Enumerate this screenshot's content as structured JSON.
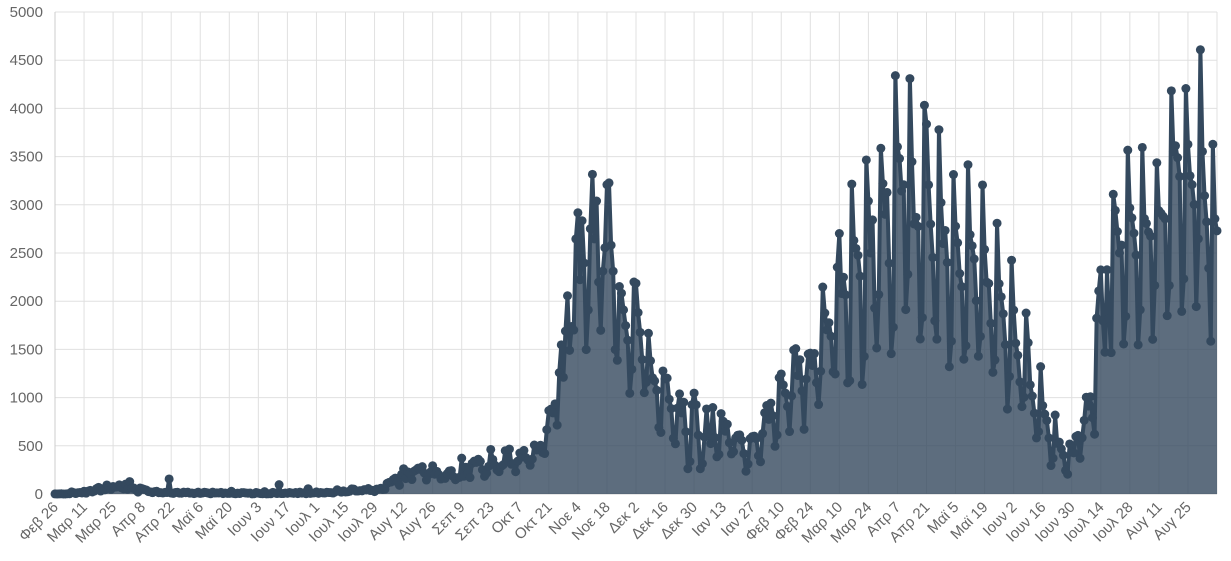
{
  "chart_data": {
    "type": "area",
    "categories": [
      "Φεβ 26",
      null,
      null,
      null,
      null,
      null,
      null,
      null,
      null,
      null,
      null,
      null,
      null,
      null,
      "Μαρ 11",
      null,
      null,
      null,
      null,
      null,
      null,
      null,
      null,
      null,
      null,
      null,
      null,
      null,
      "Μαρ 25",
      null,
      null,
      null,
      null,
      null,
      null,
      null,
      null,
      null,
      null,
      null,
      null,
      null,
      "Απρ 8",
      null,
      null,
      null,
      null,
      null,
      null,
      null,
      null,
      null,
      null,
      null,
      null,
      null,
      "Απρ 22",
      null,
      null,
      null,
      null,
      null,
      null,
      null,
      null,
      null,
      null,
      null,
      null,
      null,
      "Μαϊ 6",
      null,
      null,
      null,
      null,
      null,
      null,
      null,
      null,
      null,
      null,
      null,
      null,
      null,
      "Μαϊ 20",
      null,
      null,
      null,
      null,
      null,
      null,
      null,
      null,
      null,
      null,
      null,
      null,
      null,
      "Ιουν 3",
      null,
      null,
      null,
      null,
      null,
      null,
      null,
      null,
      null,
      null,
      null,
      null,
      null,
      "Ιουν 17",
      null,
      null,
      null,
      null,
      null,
      null,
      null,
      null,
      null,
      null,
      null,
      null,
      null,
      "Ιουλ 1",
      null,
      null,
      null,
      null,
      null,
      null,
      null,
      null,
      null,
      null,
      null,
      null,
      null,
      "Ιουλ 15",
      null,
      null,
      null,
      null,
      null,
      null,
      null,
      null,
      null,
      null,
      null,
      null,
      null,
      "Ιουλ 29",
      null,
      null,
      null,
      null,
      null,
      null,
      null,
      null,
      null,
      null,
      null,
      null,
      null,
      "Αυγ 12",
      null,
      null,
      null,
      null,
      null,
      null,
      null,
      null,
      null,
      null,
      null,
      null,
      null,
      "Αυγ 26",
      null,
      null,
      null,
      null,
      null,
      null,
      null,
      null,
      null,
      null,
      null,
      null,
      null,
      "Σεπ 9",
      null,
      null,
      null,
      null,
      null,
      null,
      null,
      null,
      null,
      null,
      null,
      null,
      null,
      "Σεπ 23",
      null,
      null,
      null,
      null,
      null,
      null,
      null,
      null,
      null,
      null,
      null,
      null,
      null,
      "Οκτ 7",
      null,
      null,
      null,
      null,
      null,
      null,
      null,
      null,
      null,
      null,
      null,
      null,
      null,
      "Οκτ 21",
      null,
      null,
      null,
      null,
      null,
      null,
      null,
      null,
      null,
      null,
      null,
      null,
      null,
      "Νοε 4",
      null,
      null,
      null,
      null,
      null,
      null,
      null,
      null,
      null,
      null,
      null,
      null,
      null,
      "Νοε 18",
      null,
      null,
      null,
      null,
      null,
      null,
      null,
      null,
      null,
      null,
      null,
      null,
      null,
      "Δεκ 2",
      null,
      null,
      null,
      null,
      null,
      null,
      null,
      null,
      null,
      null,
      null,
      null,
      null,
      "Δεκ 16",
      null,
      null,
      null,
      null,
      null,
      null,
      null,
      null,
      null,
      null,
      null,
      null,
      null,
      "Δεκ 30",
      null,
      null,
      null,
      null,
      null,
      null,
      null,
      null,
      null,
      null,
      null,
      null,
      null,
      "Ιαν 13",
      null,
      null,
      null,
      null,
      null,
      null,
      null,
      null,
      null,
      null,
      null,
      null,
      null,
      "Ιαν 27",
      null,
      null,
      null,
      null,
      null,
      null,
      null,
      null,
      null,
      null,
      null,
      null,
      null,
      "Φεβ 10",
      null,
      null,
      null,
      null,
      null,
      null,
      null,
      null,
      null,
      null,
      null,
      null,
      null,
      "Φεβ 24",
      null,
      null,
      null,
      null,
      null,
      null,
      null,
      null,
      null,
      null,
      null,
      null,
      null,
      "Μαρ 10",
      null,
      null,
      null,
      null,
      null,
      null,
      null,
      null,
      null,
      null,
      null,
      null,
      null,
      "Μαρ 24",
      null,
      null,
      null,
      null,
      null,
      null,
      null,
      null,
      null,
      null,
      null,
      null,
      null,
      "Απρ 7",
      null,
      null,
      null,
      null,
      null,
      null,
      null,
      null,
      null,
      null,
      null,
      null,
      null,
      "Απρ 21",
      null,
      null,
      null,
      null,
      null,
      null,
      null,
      null,
      null,
      null,
      null,
      null,
      null,
      "Μαϊ 5",
      null,
      null,
      null,
      null,
      null,
      null,
      null,
      null,
      null,
      null,
      null,
      null,
      null,
      "Μαϊ 19",
      null,
      null,
      null,
      null,
      null,
      null,
      null,
      null,
      null,
      null,
      null,
      null,
      null,
      "Ιουν 2",
      null,
      null,
      null,
      null,
      null,
      null,
      null,
      null,
      null,
      null,
      null,
      null,
      null,
      "Ιουν 16",
      null,
      null,
      null,
      null,
      null,
      null,
      null,
      null,
      null,
      null,
      null,
      null,
      null,
      "Ιουν 30",
      null,
      null,
      null,
      null,
      null,
      null,
      null,
      null,
      null,
      null,
      null,
      null,
      null,
      "Ιουλ 14",
      null,
      null,
      null,
      null,
      null,
      null,
      null,
      null,
      null,
      null,
      null,
      null,
      null,
      "Ιουλ 28",
      null,
      null,
      null,
      null,
      null,
      null,
      null,
      null,
      null,
      null,
      null,
      null,
      null,
      "Αυγ 11",
      null,
      null,
      null,
      null,
      null,
      null,
      null,
      null,
      null,
      null,
      null,
      null,
      null,
      "Αυγ 25",
      null,
      null,
      null,
      null,
      null,
      null,
      null,
      null,
      null,
      null,
      null,
      null,
      null,
      null
    ],
    "values": [
      1,
      0,
      1,
      2,
      0,
      0,
      3,
      2,
      22,
      14,
      5,
      13,
      16,
      11,
      28,
      9,
      30,
      38,
      21,
      31,
      56,
      69,
      31,
      54,
      43,
      94,
      71,
      49,
      78,
      71,
      74,
      95,
      64,
      55,
      102,
      50,
      129,
      60,
      62,
      41,
      20,
      62,
      56,
      48,
      42,
      25,
      22,
      14,
      25,
      28,
      13,
      14,
      11,
      17,
      15,
      156,
      10,
      6,
      15,
      18,
      9,
      8,
      20,
      13,
      19,
      9,
      11,
      4,
      10,
      19,
      6,
      10,
      18,
      14,
      9,
      2,
      20,
      10,
      12,
      11,
      17,
      4,
      10,
      7,
      6,
      28,
      6,
      2,
      9,
      5,
      14,
      14,
      10,
      8,
      10,
      1,
      3,
      16,
      9,
      4,
      2,
      24,
      1,
      3,
      2,
      17,
      11,
      5,
      97,
      5,
      5,
      10,
      7,
      15,
      10,
      7,
      15,
      4,
      20,
      9,
      13,
      3,
      55,
      6,
      10,
      12,
      22,
      7,
      15,
      12,
      10,
      18,
      15,
      14,
      10,
      21,
      44,
      28,
      19,
      32,
      21,
      23,
      28,
      53,
      50,
      31,
      31,
      35,
      33,
      46,
      42,
      57,
      36,
      38,
      25,
      50,
      51,
      60,
      47,
      50,
      110,
      121,
      125,
      150,
      165,
      124,
      90,
      203,
      262,
      160,
      230,
      217,
      150,
      236,
      250,
      269,
      255,
      284,
      217,
      145,
      199,
      229,
      293,
      205,
      235,
      202,
      155,
      177,
      162,
      211,
      238,
      243,
      180,
      148,
      169,
      173,
      372,
      184,
      277,
      212,
      171,
      318,
      341,
      328,
      361,
      338,
      252,
      183,
      216,
      287,
      462,
      358,
      299,
      250,
      232,
      286,
      303,
      449,
      350,
      466,
      308,
      314,
      231,
      341,
      425,
      382,
      452,
      377,
      350,
      298,
      362,
      508,
      456,
      460,
      506,
      430,
      420,
      667,
      865,
      880,
      841,
      935,
      715,
      1259,
      1547,
      1211,
      1690,
      2056,
      1490,
      1738,
      1701,
      2646,
      2917,
      2223,
      2835,
      2396,
      1498,
      1909,
      2752,
      3316,
      2646,
      3039,
      2198,
      1698,
      2311,
      2554,
      3209,
      3227,
      2581,
      2311,
      1498,
      1387,
      2152,
      2083,
      1910,
      1747,
      1595,
      1044,
      1294,
      2199,
      2185,
      1882,
      1677,
      1395,
      1051,
      1158,
      1667,
      1382,
      1205,
      1173,
      1076,
      691,
      638,
      1276,
      1194,
      1202,
      983,
      886,
      578,
      521,
      891,
      1038,
      841,
      952,
      646,
      262,
      337,
      926,
      1047,
      925,
      611,
      262,
      315,
      590,
      882,
      634,
      523,
      897,
      586,
      386,
      411,
      834,
      755,
      651,
      724,
      532,
      416,
      439,
      581,
      609,
      613,
      557,
      419,
      236,
      311,
      574,
      595,
      601,
      574,
      398,
      335,
      627,
      842,
      918,
      774,
      943,
      812,
      495,
      613,
      1207,
      1245,
      1131,
      1047,
      908,
      648,
      1017,
      1493,
      1508,
      1229,
      1393,
      1070,
      671,
      1193,
      1452,
      1462,
      1333,
      1457,
      1155,
      928,
      1274,
      2147,
      1877,
      1702,
      1777,
      1636,
      1267,
      1245,
      2353,
      2702,
      2080,
      2249,
      2066,
      1153,
      1175,
      3215,
      2630,
      2547,
      2476,
      2260,
      1136,
      1427,
      3465,
      3039,
      2500,
      2843,
      1929,
      1515,
      2069,
      3586,
      3220,
      2901,
      3128,
      2394,
      1456,
      1730,
      4340,
      3602,
      3480,
      3143,
      3208,
      1913,
      2279,
      4309,
      3447,
      2801,
      2870,
      2776,
      1608,
      1830,
      4033,
      3837,
      3207,
      2800,
      2454,
      1797,
      1606,
      3779,
      3023,
      2598,
      2734,
      2402,
      1320,
      1585,
      3314,
      2778,
      2606,
      2287,
      2151,
      1398,
      1538,
      3416,
      2690,
      2574,
      2438,
      2005,
      1429,
      1635,
      3206,
      2537,
      2198,
      2184,
      1771,
      1262,
      1391,
      2809,
      2181,
      2045,
      1869,
      1549,
      881,
      1220,
      2425,
      1908,
      1564,
      1439,
      1163,
      907,
      1004,
      1877,
      1570,
      1132,
      1016,
      838,
      582,
      647,
      1321,
      917,
      828,
      763,
      581,
      295,
      371,
      819,
      525,
      538,
      468,
      403,
      245,
      205,
      519,
      433,
      427,
      596,
      608,
      370,
      583,
      764,
      1004,
      912,
      1009,
      791,
      620,
      1824,
      2106,
      2325,
      1797,
      1471,
      2326,
      1821,
      1466,
      3109,
      2942,
      2723,
      2500,
      2582,
      1556,
      1843,
      3567,
      2967,
      2864,
      2705,
      2479,
      1547,
      1911,
      3595,
      2857,
      2807,
      2718,
      2674,
      1604,
      2163,
      3436,
      2939,
      2912,
      2882,
      2855,
      1850,
      2163,
      4182,
      3552,
      3612,
      3489,
      3294,
      1894,
      2232,
      4206,
      3627,
      3301,
      3209,
      3003,
      1944,
      2647,
      4608,
      3553,
      3094,
      2823,
      2343,
      1585,
      3628,
      2855,
      2730
    ],
    "color": "#34495e",
    "ylim": [
      0,
      5000
    ],
    "yticks": [
      0,
      500,
      1000,
      1500,
      2000,
      2500,
      3000,
      3500,
      4000,
      4500,
      5000
    ],
    "grid": true
  }
}
